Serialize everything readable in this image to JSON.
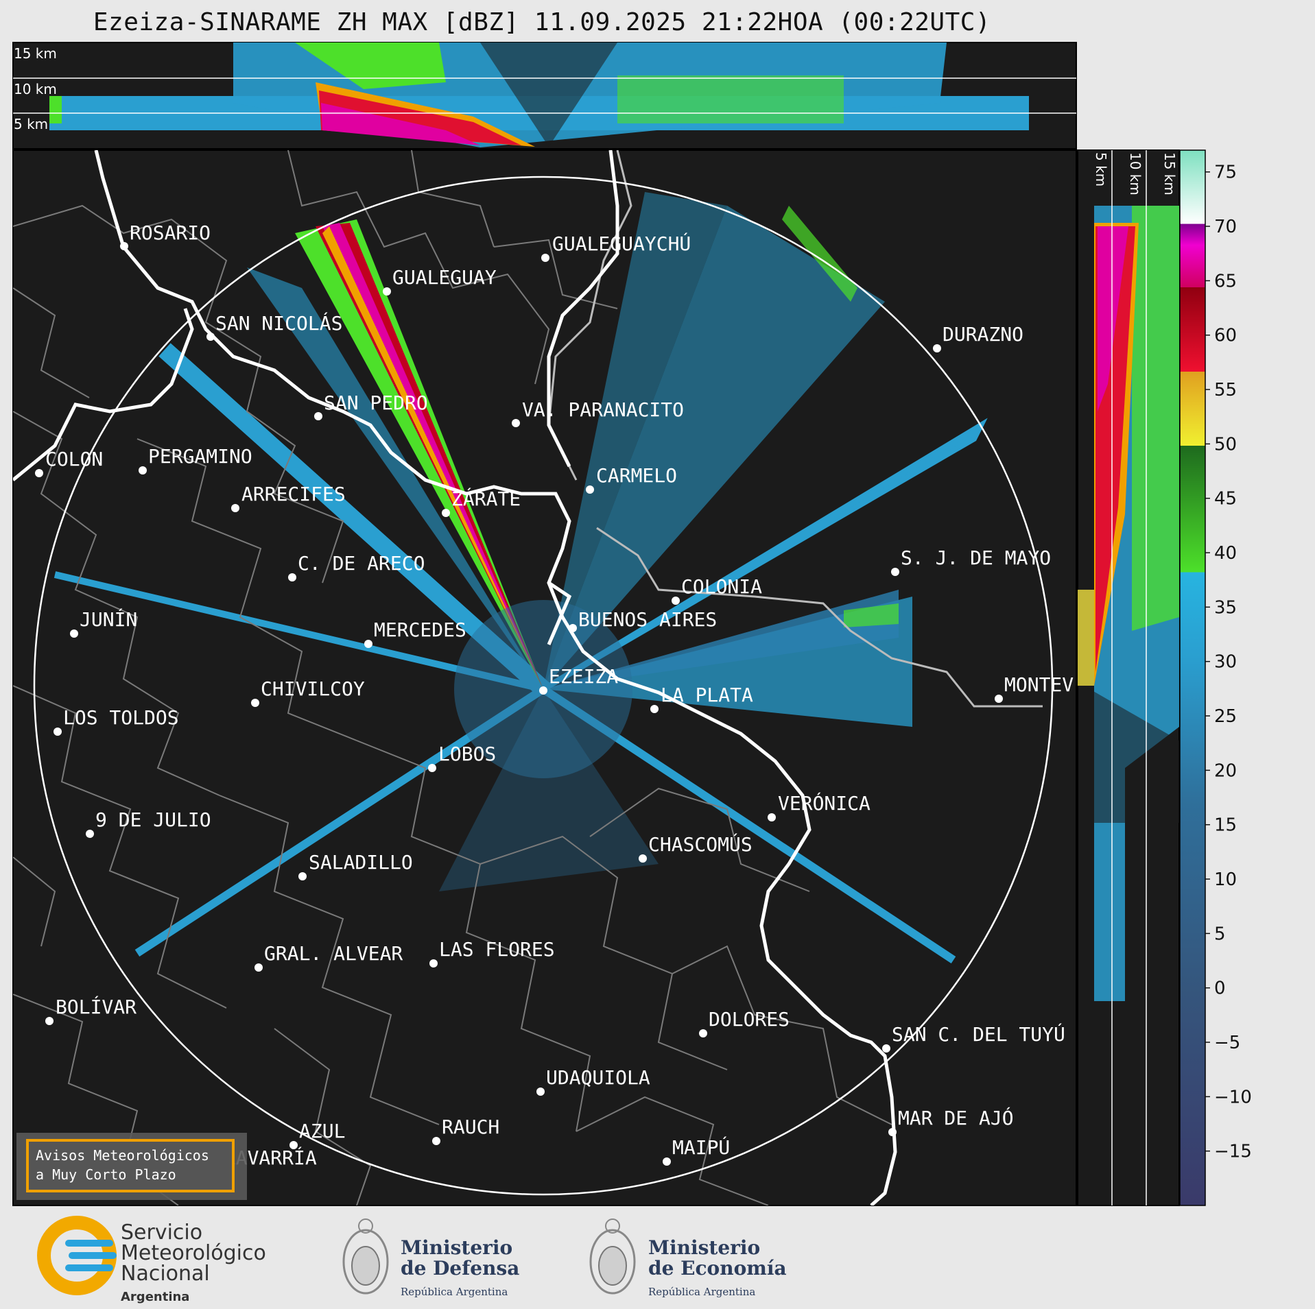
{
  "title": "Ezeiza-SINARAME ZH MAX [dBZ] 11.09.2025 21:22HOA (00:22UTC)",
  "top_panel_levels": [
    "15 km",
    "10 km",
    "5 km"
  ],
  "side_panel_levels": [
    "5 km",
    "10 km",
    "15 km"
  ],
  "colorbar": {
    "unit": "dBZ",
    "ticks": [
      "75",
      "70",
      "65",
      "60",
      "55",
      "50",
      "45",
      "40",
      "35",
      "30",
      "25",
      "20",
      "15",
      "10",
      "5",
      "0",
      "−5",
      "−10",
      "−15"
    ],
    "range": [
      -20,
      77
    ]
  },
  "cities": [
    {
      "name": "ROSARIO"
    },
    {
      "name": "GUALEGUAYCHÚ"
    },
    {
      "name": "GUALEGUAY"
    },
    {
      "name": "SAN NICOLÁS"
    },
    {
      "name": "DURAZNO"
    },
    {
      "name": "SAN PEDRO"
    },
    {
      "name": "VA. PARANACITO"
    },
    {
      "name": "COLON"
    },
    {
      "name": "PERGAMINO"
    },
    {
      "name": "CARMELO"
    },
    {
      "name": "ARRECIFES"
    },
    {
      "name": "ZÁRATE"
    },
    {
      "name": "S. J. DE MAYO"
    },
    {
      "name": "C. DE ARECO"
    },
    {
      "name": "COLONIA"
    },
    {
      "name": "JUNÍN"
    },
    {
      "name": "BUENOS AIRES"
    },
    {
      "name": "MERCEDES"
    },
    {
      "name": "EZEIZA"
    },
    {
      "name": "CHIVILCOY"
    },
    {
      "name": "MONTEV"
    },
    {
      "name": "LA PLATA"
    },
    {
      "name": "LOS TOLDOS"
    },
    {
      "name": "LOBOS"
    },
    {
      "name": "VERÓNICA"
    },
    {
      "name": "9 DE JULIO"
    },
    {
      "name": "CHASCOMÚS"
    },
    {
      "name": "SALADILLO"
    },
    {
      "name": "GRAL. ALVEAR"
    },
    {
      "name": "LAS FLORES"
    },
    {
      "name": "BOLÍVAR"
    },
    {
      "name": "DOLORES"
    },
    {
      "name": "SAN C. DEL TUYÚ"
    },
    {
      "name": "UDAQUIOLA"
    },
    {
      "name": "MAR DE AJÓ"
    },
    {
      "name": "RAUCH"
    },
    {
      "name": "AZUL"
    },
    {
      "name": "MAIPÚ"
    },
    {
      "name": "OLAVARRÍA"
    }
  ],
  "notice": {
    "line1": "Avisos Meteorológicos",
    "line2": "a Muy Corto Plazo"
  },
  "logos": {
    "smn": {
      "line1": "Servicio",
      "line2": "Meteorológico",
      "line3": "Nacional",
      "line4": "Argentina"
    },
    "defensa": {
      "line1": "Ministerio",
      "line2": "de Defensa",
      "line3": "República Argentina"
    },
    "economia": {
      "line1": "Ministerio",
      "line2": "de Economía",
      "line3": "República Argentina"
    }
  },
  "colors": {
    "background": "#1b1b1b",
    "page": "#e8e8e8",
    "coast": "#ffffff",
    "borders": "#7a7a7a",
    "notice_border": "#f0a000"
  }
}
